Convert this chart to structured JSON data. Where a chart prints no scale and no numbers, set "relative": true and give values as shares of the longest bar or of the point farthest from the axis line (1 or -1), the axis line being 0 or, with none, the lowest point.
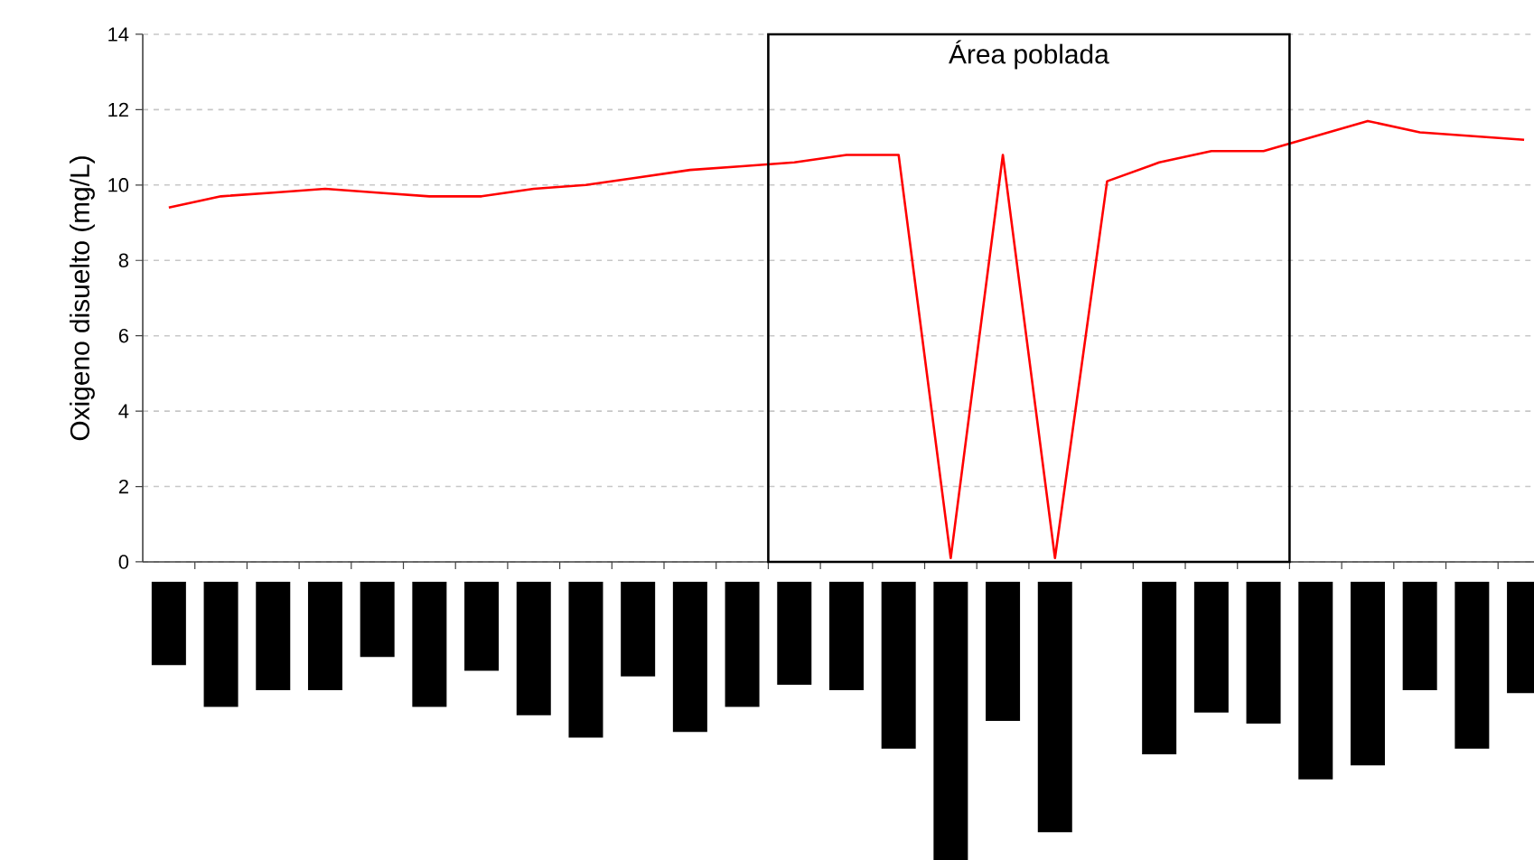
{
  "chart_data": [
    {
      "type": "line",
      "ylabel": "Oxigeno disuelto (mg/L)",
      "color": "#ff0000",
      "marker": "none",
      "line_style": "solid",
      "grid": "y",
      "tick_labels": "y",
      "ylim": [
        0,
        14
      ],
      "yticks": [
        0,
        2,
        4,
        6,
        8,
        10,
        12,
        14
      ],
      "annotations": [
        "Área poblada"
      ],
      "categories": [
        null,
        null,
        null,
        null,
        null,
        null,
        null,
        null,
        null,
        null,
        null,
        null,
        null,
        null,
        null,
        null,
        null,
        null,
        null,
        null,
        null,
        null,
        null,
        null,
        null,
        null,
        null
      ],
      "values": [
        9.4,
        9.7,
        9.8,
        9.9,
        9.8,
        9.7,
        9.7,
        9.9,
        10.0,
        10.2,
        10.4,
        10.5,
        10.6,
        10.8,
        10.8,
        0.1,
        10.8,
        0.1,
        10.1,
        10.6,
        10.9,
        10.9,
        11.3,
        11.7,
        11.4,
        11.3,
        11.2
      ]
    },
    {
      "type": "bar",
      "relative": true,
      "color": "#000000",
      "categories": [
        null,
        null,
        null,
        null,
        null,
        null,
        null,
        null,
        null,
        null,
        null,
        null,
        null,
        null,
        null,
        null,
        null,
        null,
        null,
        null,
        null,
        null,
        null,
        null,
        null,
        null,
        null
      ],
      "values": [
        -0.3,
        -0.45,
        -0.39,
        -0.39,
        -0.27,
        -0.45,
        -0.32,
        -0.48,
        -0.56,
        -0.34,
        -0.54,
        -0.45,
        -0.37,
        -0.39,
        -0.6,
        -1,
        -0.5,
        -0.9,
        0,
        -0.62,
        -0.47,
        -0.51,
        -0.71,
        -0.66,
        -0.39,
        -0.6,
        -0.4
      ]
    }
  ]
}
